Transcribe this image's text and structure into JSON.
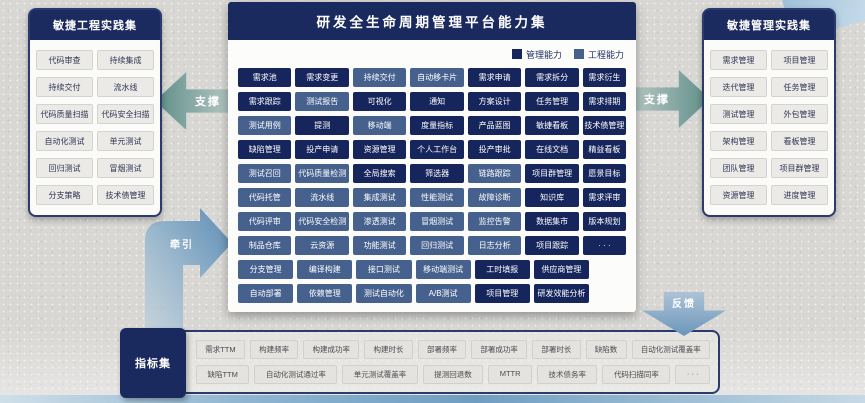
{
  "colors": {
    "management": "#16265c",
    "engineering": "#46618e",
    "panel_header": "#1c2b5f",
    "support_arrow_teal": "#5f8e88",
    "flow_arrow_blue": "#6b96bb"
  },
  "panels": {
    "left": {
      "title": "敏捷工程实践集",
      "items": [
        "代码审查",
        "持续集成",
        "持续交付",
        "流水线",
        "代码质量扫描",
        "代码安全扫描",
        "自动化测试",
        "单元测试",
        "回归测试",
        "冒烟测试",
        "分支策略",
        "技术债管理"
      ]
    },
    "right": {
      "title": "敏捷管理实践集",
      "items": [
        "需求管理",
        "项目管理",
        "迭代管理",
        "任务管理",
        "测试管理",
        "外包管理",
        "架构管理",
        "看板管理",
        "团队管理",
        "项目群管理",
        "资源管理",
        "进度管理"
      ]
    },
    "center": {
      "title": "研发全生命周期管理平台能力集",
      "legend": [
        {
          "label": "管理能力",
          "color": "#16265c"
        },
        {
          "label": "工程能力",
          "color": "#46618e"
        }
      ],
      "rows": [
        [
          [
            "需求池",
            "m"
          ],
          [
            "需求变更",
            "m"
          ],
          [
            "持续交付",
            "e"
          ],
          [
            "自动移卡片",
            "e"
          ],
          [
            "需求申请",
            "m"
          ],
          [
            "需求拆分",
            "m"
          ],
          [
            "需求衍生",
            "m"
          ]
        ],
        [
          [
            "需求跟踪",
            "m"
          ],
          [
            "测试报告",
            "e"
          ],
          [
            "可视化",
            "m"
          ],
          [
            "通知",
            "m"
          ],
          [
            "方案设计",
            "m"
          ],
          [
            "任务管理",
            "m"
          ],
          [
            "需求排期",
            "m"
          ]
        ],
        [
          [
            "测试用例",
            "e"
          ],
          [
            "提测",
            "m"
          ],
          [
            "移动端",
            "e"
          ],
          [
            "度量指标",
            "m"
          ],
          [
            "产品蓝图",
            "m"
          ],
          [
            "敏捷看板",
            "m"
          ],
          [
            "技术债管理",
            "m"
          ]
        ],
        [
          [
            "缺陷管理",
            "m"
          ],
          [
            "投产申请",
            "m"
          ],
          [
            "资源管理",
            "m"
          ],
          [
            "个人工作台",
            "m"
          ],
          [
            "投产审批",
            "m"
          ],
          [
            "在线文档",
            "m"
          ],
          [
            "精益看板",
            "m"
          ]
        ],
        [
          [
            "测试召回",
            "e"
          ],
          [
            "代码质量检测",
            "e"
          ],
          [
            "全局搜索",
            "m"
          ],
          [
            "筛选器",
            "m"
          ],
          [
            "链路跟踪",
            "e"
          ],
          [
            "项目群管理",
            "m"
          ],
          [
            "愿景目标",
            "m"
          ]
        ],
        [
          [
            "代码托管",
            "e"
          ],
          [
            "流水线",
            "e"
          ],
          [
            "集成测试",
            "e"
          ],
          [
            "性能测试",
            "e"
          ],
          [
            "故障诊断",
            "e"
          ],
          [
            "知识库",
            "m"
          ],
          [
            "需求评审",
            "m"
          ]
        ],
        [
          [
            "代码评审",
            "e"
          ],
          [
            "代码安全检测",
            "e"
          ],
          [
            "渗透测试",
            "e"
          ],
          [
            "冒烟测试",
            "e"
          ],
          [
            "监控告警",
            "e"
          ],
          [
            "数据集市",
            "m"
          ],
          [
            "版本规划",
            "m"
          ]
        ],
        [
          [
            "制品仓库",
            "e"
          ],
          [
            "云资源",
            "e"
          ],
          [
            "功能测试",
            "e"
          ],
          [
            "回归测试",
            "e"
          ],
          [
            "日志分析",
            "e"
          ],
          [
            "项目跟踪",
            "m"
          ],
          [
            "· · ·",
            "m"
          ]
        ],
        [
          [
            "分支管理",
            "e"
          ],
          [
            "编译构建",
            "e"
          ],
          [
            "接口测试",
            "e"
          ],
          [
            "移动端测试",
            "e"
          ],
          [
            "工时填报",
            "m"
          ],
          [
            "供应商管理",
            "m"
          ]
        ],
        [
          [
            "自动部署",
            "e"
          ],
          [
            "依赖管理",
            "e"
          ],
          [
            "测试自动化",
            "e"
          ],
          [
            "A/B测试",
            "e"
          ],
          [
            "项目管理",
            "m"
          ],
          [
            "研发效能分析",
            "m"
          ]
        ]
      ]
    },
    "metrics": {
      "title": "指标集",
      "rows": [
        [
          "需求TTM",
          "构建频率",
          "构建成功率",
          "构建时长",
          "部署频率",
          "部署成功率",
          "部署时长",
          "缺陷数",
          "自动化测试覆盖率"
        ],
        [
          "缺陷TTM",
          "自动化测试通过率",
          "单元测试覆盖率",
          "提测回退数",
          "MTTR",
          "技术债务率",
          "代码扫描同率",
          "· · ·"
        ]
      ]
    }
  },
  "arrows": {
    "left_support": "支撑",
    "right_support": "支撑",
    "pull": "牵引",
    "feedback": "反馈"
  }
}
